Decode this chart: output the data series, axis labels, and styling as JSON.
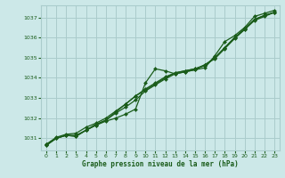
{
  "background_color": "#cce8e8",
  "grid_color": "#aacccc",
  "line_color": "#1a5c1a",
  "marker_color": "#1a5c1a",
  "text_color": "#1a5c1a",
  "xlabel": "Graphe pression niveau de la mer (hPa)",
  "xlim": [
    -0.5,
    23.5
  ],
  "ylim": [
    1030.4,
    1037.6
  ],
  "yticks": [
    1031,
    1032,
    1033,
    1034,
    1035,
    1036,
    1037
  ],
  "xticks": [
    0,
    1,
    2,
    3,
    4,
    5,
    6,
    7,
    8,
    9,
    10,
    11,
    12,
    13,
    14,
    15,
    16,
    17,
    18,
    19,
    20,
    21,
    22,
    23
  ],
  "series": [
    [
      1030.7,
      1031.0,
      1031.15,
      1031.15,
      1031.4,
      1031.65,
      1031.85,
      1032.0,
      1032.2,
      1032.45,
      1033.75,
      1034.45,
      1034.35,
      1034.2,
      1034.3,
      1034.4,
      1034.5,
      1035.1,
      1035.8,
      1036.1,
      1036.5,
      1037.05,
      1037.2,
      1037.35
    ],
    [
      1030.7,
      1031.05,
      1031.2,
      1031.25,
      1031.55,
      1031.75,
      1032.0,
      1032.35,
      1032.7,
      1033.1,
      1033.45,
      1033.75,
      1034.05,
      1034.25,
      1034.35,
      1034.45,
      1034.6,
      1035.0,
      1035.5,
      1036.0,
      1036.45,
      1036.9,
      1037.1,
      1037.25
    ],
    [
      1030.65,
      1031.0,
      1031.15,
      1031.1,
      1031.4,
      1031.65,
      1031.9,
      1032.25,
      1032.55,
      1032.9,
      1033.35,
      1033.65,
      1033.95,
      1034.2,
      1034.3,
      1034.4,
      1034.65,
      1034.95,
      1035.45,
      1035.95,
      1036.4,
      1036.85,
      1037.05,
      1037.25
    ],
    [
      1030.65,
      1031.0,
      1031.15,
      1031.1,
      1031.4,
      1031.7,
      1031.9,
      1032.3,
      1032.7,
      1033.1,
      1033.4,
      1033.7,
      1034.0,
      1034.25,
      1034.35,
      1034.45,
      1034.65,
      1035.0,
      1035.5,
      1036.0,
      1036.4,
      1036.9,
      1037.1,
      1037.25
    ]
  ]
}
